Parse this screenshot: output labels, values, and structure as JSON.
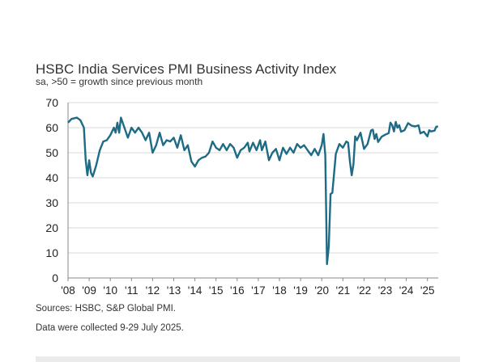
{
  "chart_data": {
    "type": "line",
    "title": "HSBC India Services PMI Business Activity Index",
    "subtitle": "sa, >50 = growth since previous month",
    "xlabel": "",
    "ylabel": "",
    "ylim": [
      0,
      70
    ],
    "yticks": [
      "0",
      "10",
      "20",
      "30",
      "40",
      "50",
      "60",
      "70"
    ],
    "xticks": [
      "'08",
      "'09",
      "'10",
      "'11",
      "'12",
      "'13",
      "'14",
      "'15",
      "'16",
      "'17",
      "'18",
      "'19",
      "'20",
      "'21",
      "'22",
      "'23",
      "'24",
      "'25"
    ],
    "xrange": [
      "2008-01",
      "2025-07"
    ],
    "grid": true,
    "line_color": "#1d6b85",
    "series": [
      {
        "x": [
          "2008-01",
          "2008-03",
          "2008-06",
          "2008-08",
          "2008-10",
          "2008-11",
          "2008-12",
          "2009-01",
          "2009-02",
          "2009-03",
          "2009-05",
          "2009-07",
          "2009-09",
          "2009-11",
          "2010-01",
          "2010-03",
          "2010-04",
          "2010-05",
          "2010-06",
          "2010-07",
          "2010-09",
          "2010-11",
          "2011-01",
          "2011-03",
          "2011-05",
          "2011-07",
          "2011-09",
          "2011-11",
          "2012-01",
          "2012-03",
          "2012-05",
          "2012-07",
          "2012-09",
          "2012-11",
          "2013-01",
          "2013-03",
          "2013-05",
          "2013-07",
          "2013-09",
          "2013-11",
          "2014-01",
          "2014-03",
          "2014-05",
          "2014-07",
          "2014-09",
          "2014-11",
          "2015-01",
          "2015-03",
          "2015-05",
          "2015-07",
          "2015-09",
          "2015-11",
          "2016-01",
          "2016-03",
          "2016-05",
          "2016-07",
          "2016-08",
          "2016-10",
          "2016-12",
          "2017-02",
          "2017-03",
          "2017-05",
          "2017-07",
          "2017-09",
          "2017-11",
          "2018-01",
          "2018-03",
          "2018-05",
          "2018-07",
          "2018-09",
          "2018-11",
          "2019-01",
          "2019-03",
          "2019-05",
          "2019-07",
          "2019-09",
          "2019-11",
          "2020-01",
          "2020-02",
          "2020-03",
          "2020-04",
          "2020-05",
          "2020-06",
          "2020-07",
          "2020-09",
          "2020-11",
          "2021-01",
          "2021-03",
          "2021-04",
          "2021-05",
          "2021-06",
          "2021-07",
          "2021-08",
          "2021-09",
          "2021-11",
          "2022-01",
          "2022-03",
          "2022-05",
          "2022-06",
          "2022-07",
          "2022-08",
          "2022-09",
          "2022-11",
          "2023-01",
          "2023-03",
          "2023-04",
          "2023-05",
          "2023-06",
          "2023-07",
          "2023-08",
          "2023-09",
          "2023-10",
          "2023-12",
          "2024-02",
          "2024-04",
          "2024-06",
          "2024-08",
          "2024-09",
          "2024-11",
          "2025-01",
          "2025-02",
          "2025-03",
          "2025-05",
          "2025-06",
          "2025-07"
        ],
        "values": [
          62,
          63.5,
          64,
          63,
          60,
          47,
          41,
          47,
          42,
          40.5,
          45,
          51,
          54.5,
          55,
          57,
          60,
          58,
          62,
          58,
          64,
          60,
          56,
          60,
          58,
          60,
          58,
          55,
          58,
          50,
          53,
          58,
          53,
          55,
          54.5,
          56,
          52,
          57,
          51,
          53,
          46.5,
          44.5,
          47,
          48,
          48.5,
          50,
          54.5,
          52,
          51,
          53.5,
          51,
          53.5,
          52,
          48,
          51,
          52,
          54,
          50.5,
          54,
          51,
          55,
          51,
          54.5,
          47,
          50,
          51.5,
          47,
          52,
          49.5,
          52,
          50,
          53.5,
          52,
          53,
          51,
          49,
          51.5,
          49,
          53,
          57.5,
          49,
          5.5,
          12.5,
          33.5,
          34,
          49.5,
          53.5,
          52,
          54.5,
          54,
          46.5,
          41,
          45.5,
          56.5,
          55,
          58,
          51.5,
          53.5,
          58.9,
          59.2,
          55.5,
          57.5,
          54.3,
          56.4,
          57.2,
          57.8,
          62,
          61,
          58.5,
          62.3,
          60,
          61,
          58.4,
          59,
          61.8,
          60.8,
          60.5,
          60.9,
          57.7,
          58.4,
          56.5,
          59,
          58.5,
          58.8,
          60.4,
          60.5
        ]
      }
    ]
  },
  "notes": {
    "sources": "Sources: HSBC, S&P Global PMI.",
    "collected": "Data were collected 9-29 July 2025."
  }
}
